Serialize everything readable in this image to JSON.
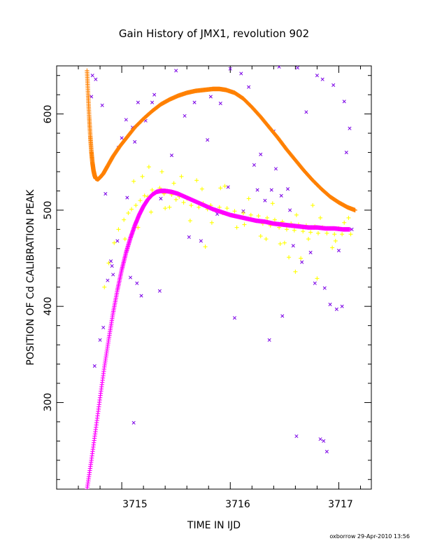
{
  "chart_data": {
    "type": "scatter",
    "title": "Gain History of JMX1, revolution 902",
    "xlabel": "TIME IN IJD",
    "ylabel": "POSITION OF Cd CALIBRATION PEAK",
    "xlim": [
      3714.4,
      3717.3
    ],
    "ylim": [
      210,
      650
    ],
    "x_ticks": [
      3715,
      3716,
      3717
    ],
    "x_tick_labels": [
      "3715",
      "3716",
      "3717"
    ],
    "y_ticks": [
      300,
      400,
      500,
      600
    ],
    "y_tick_labels": [
      "300",
      "400",
      "500",
      "600"
    ],
    "grid": false,
    "footer": "oxborrow 29-Apr-2010 13:56",
    "colors": {
      "orange": "#ff8000",
      "magenta": "#ff00ff",
      "yellow": "#ffff00",
      "purple": "#7a00e6"
    },
    "series": [
      {
        "marker": "x",
        "color": "#7a00e6",
        "x": [
          3714.73,
          3714.76,
          3714.85,
          3714.9,
          3714.92,
          3714.97,
          3715.0,
          3715.05,
          3715.1,
          3715.15,
          3715.22,
          3715.3,
          3715.36,
          3715.5,
          3715.58,
          3715.67,
          3715.79,
          3715.91,
          3716.0,
          3716.1,
          3716.17,
          3716.25,
          3716.32,
          3716.4,
          3716.45,
          3716.55,
          3716.62,
          3716.7,
          3716.8,
          3716.85,
          3716.95,
          3717.05,
          3717.1,
          3714.75,
          3714.8,
          3714.83,
          3714.87,
          3714.91,
          3714.96,
          3715.08,
          3715.14,
          3715.35,
          3715.62,
          3715.73,
          3715.88,
          3716.12,
          3716.22,
          3716.38,
          3716.47,
          3716.58,
          3716.74,
          3716.87,
          3716.98,
          3717.07,
          3714.72,
          3714.82,
          3715.04,
          3715.12,
          3715.28,
          3715.46,
          3715.82,
          3715.98,
          3716.28,
          3716.42,
          3716.53,
          3716.66,
          3716.78,
          3716.92,
          3717.0,
          3717.12,
          3715.11,
          3715.18,
          3716.61,
          3716.83,
          3716.86,
          3716.04,
          3716.36,
          3716.48,
          3716.89,
          3717.03
        ],
        "y": [
          640,
          636,
          517,
          447,
          433,
          565,
          575,
          513,
          586,
          612,
          593,
          620,
          512,
          645,
          598,
          612,
          573,
          611,
          647,
          642,
          628,
          521,
          510,
          582,
          649,
          500,
          648,
          602,
          640,
          636,
          630,
          613,
          585,
          338,
          365,
          378,
          427,
          442,
          468,
          430,
          424,
          416,
          472,
          468,
          496,
          499,
          547,
          521,
          515,
          463,
          456,
          419,
          397,
          560,
          618,
          609,
          594,
          571,
          612,
          557,
          618,
          524,
          558,
          543,
          522,
          446,
          424,
          402,
          458,
          480,
          279,
          411,
          265,
          262,
          260,
          388,
          365,
          390,
          249,
          400
        ]
      },
      {
        "marker": "+",
        "color": "#ffff00",
        "x": [
          3714.84,
          3714.88,
          3714.93,
          3714.97,
          3715.02,
          3715.06,
          3715.09,
          3715.13,
          3715.17,
          3715.21,
          3715.24,
          3715.28,
          3715.31,
          3715.35,
          3715.39,
          3715.42,
          3715.46,
          3715.5,
          3715.53,
          3715.57,
          3715.6,
          3715.64,
          3715.68,
          3715.71,
          3715.75,
          3715.79,
          3715.82,
          3715.86,
          3715.9,
          3715.93,
          3715.97,
          3716.01,
          3716.04,
          3716.08,
          3716.12,
          3716.15,
          3716.19,
          3716.23,
          3716.26,
          3716.3,
          3716.34,
          3716.37,
          3716.41,
          3716.45,
          3716.48,
          3716.52,
          3716.56,
          3716.59,
          3716.63,
          3716.67,
          3716.7,
          3716.74,
          3716.78,
          3716.81,
          3716.85,
          3716.89,
          3716.92,
          3716.96,
          3717.0,
          3717.03,
          3717.07,
          3717.11,
          3715.03,
          3715.11,
          3715.19,
          3715.27,
          3715.37,
          3715.44,
          3715.55,
          3715.63,
          3715.74,
          3715.83,
          3715.95,
          3716.06,
          3716.17,
          3716.28,
          3716.39,
          3716.5,
          3716.61,
          3716.72,
          3716.83,
          3716.94,
          3717.05,
          3715.15,
          3715.25,
          3715.48,
          3715.69,
          3715.91,
          3716.13,
          3716.33,
          3716.54,
          3716.76,
          3716.97,
          3717.09,
          3716.6,
          3716.65,
          3716.8,
          3715.4,
          3715.77,
          3716.46
        ],
        "y": [
          420,
          445,
          466,
          480,
          490,
          497,
          501,
          505,
          510,
          515,
          514,
          521,
          518,
          523,
          517,
          520,
          516,
          511,
          514,
          508,
          512,
          505,
          509,
          503,
          507,
          501,
          505,
          500,
          503,
          497,
          502,
          495,
          499,
          493,
          497,
          491,
          495,
          489,
          494,
          486,
          492,
          484,
          490,
          482,
          488,
          480,
          486,
          479,
          485,
          478,
          484,
          477,
          483,
          476,
          482,
          476,
          481,
          475,
          481,
          475,
          480,
          475,
          470,
          530,
          535,
          498,
          540,
          503,
          535,
          489,
          522,
          487,
          525,
          482,
          512,
          473,
          507,
          466,
          495,
          470,
          492,
          461,
          487,
          482,
          545,
          528,
          531,
          523,
          485,
          470,
          451,
          505,
          468,
          492,
          436,
          450,
          429,
          502,
          462,
          465
        ]
      },
      {
        "marker": "+",
        "color": "#ff8000",
        "label": "orange fitted gain curve",
        "x": [
          3714.68,
          3714.69,
          3714.7,
          3714.71,
          3714.72,
          3714.73,
          3714.74,
          3714.75,
          3714.76,
          3714.78,
          3714.8,
          3714.83,
          3714.87,
          3714.92,
          3714.98,
          3715.05,
          3715.12,
          3715.2,
          3715.28,
          3715.36,
          3715.44,
          3715.52,
          3715.6,
          3715.68,
          3715.76,
          3715.84,
          3715.9,
          3715.96,
          3716.04,
          3716.12,
          3716.2,
          3716.28,
          3716.36,
          3716.44,
          3716.52,
          3716.6,
          3716.68,
          3716.76,
          3716.84,
          3716.92,
          3717.0,
          3717.08,
          3717.15
        ],
        "y": [
          645,
          620,
          597,
          577,
          561,
          549,
          541,
          536,
          533,
          532,
          534,
          538,
          546,
          556,
          566,
          576,
          586,
          595,
          603,
          610,
          615,
          619,
          622,
          624,
          625,
          626,
          626,
          625,
          622,
          616,
          607,
          597,
          586,
          575,
          563,
          552,
          541,
          531,
          522,
          514,
          508,
          503,
          500
        ]
      },
      {
        "marker": "+",
        "color": "#ff00ff",
        "label": "magenta fitted gain curve",
        "x": [
          3714.68,
          3714.72,
          3714.76,
          3714.8,
          3714.84,
          3714.88,
          3714.92,
          3714.96,
          3715.0,
          3715.04,
          3715.08,
          3715.12,
          3715.16,
          3715.2,
          3715.24,
          3715.28,
          3715.32,
          3715.36,
          3715.4,
          3715.46,
          3715.52,
          3715.6,
          3715.68,
          3715.76,
          3715.84,
          3715.92,
          3716.0,
          3716.08,
          3716.16,
          3716.24,
          3716.32,
          3716.4,
          3716.48,
          3716.56,
          3716.64,
          3716.72,
          3716.8,
          3716.88,
          3716.96,
          3717.04,
          3717.1
        ],
        "y": [
          210,
          240,
          272,
          305,
          337,
          366,
          393,
          417,
          438,
          456,
          471,
          484,
          495,
          504,
          511,
          516,
          519,
          520,
          520,
          519,
          517,
          513,
          509,
          505,
          501,
          498,
          495,
          493,
          491,
          489,
          488,
          486,
          485,
          484,
          483,
          482,
          482,
          481,
          481,
          480,
          480
        ]
      }
    ]
  }
}
